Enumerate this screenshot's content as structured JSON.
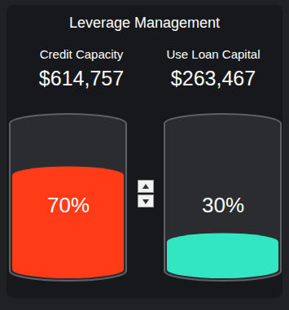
{
  "chart_data": {
    "type": "bar",
    "title": "Leverage Management",
    "categories": [
      "Credit Capacity",
      "Use Loan Capital"
    ],
    "amounts": [
      "$614,757",
      "$263,467"
    ],
    "values": [
      70,
      30
    ],
    "value_labels": [
      "70%",
      "30%"
    ],
    "colors": [
      "#ff3b18",
      "#33e6c2"
    ],
    "ylim": [
      0,
      100
    ],
    "data_labels": true,
    "tick_labels": false
  }
}
